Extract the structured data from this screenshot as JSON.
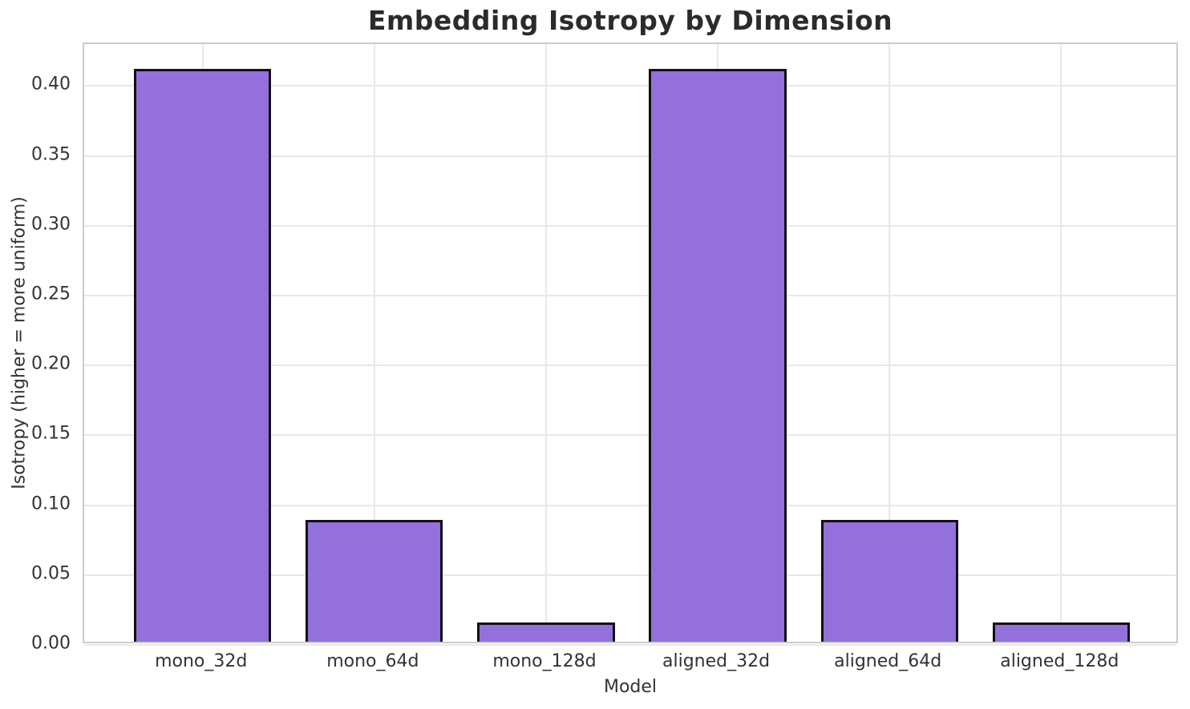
{
  "chart_data": {
    "type": "bar",
    "title": "Embedding Isotropy by Dimension",
    "xlabel": "Model",
    "ylabel": "Isotropy (higher = more uniform)",
    "categories": [
      "mono_32d",
      "mono_64d",
      "mono_128d",
      "aligned_32d",
      "aligned_64d",
      "aligned_128d"
    ],
    "values": [
      0.41,
      0.087,
      0.014,
      0.41,
      0.087,
      0.014
    ],
    "ylim": [
      0,
      0.43
    ],
    "ytick_step": 0.05,
    "ytick_labels": [
      "0.00",
      "0.05",
      "0.10",
      "0.15",
      "0.20",
      "0.25",
      "0.30",
      "0.35",
      "0.40"
    ],
    "xlim": [
      -0.69,
      5.69
    ],
    "bar_width": 0.8,
    "grid": true,
    "legend": "none",
    "colors": {
      "bar_fill": "#9370DB",
      "bar_edge": "#111111",
      "grid_line": "#e8e8e8",
      "spine": "#cccccc",
      "text": "#333333",
      "title": "#2b2b2b",
      "background": "#ffffff"
    }
  }
}
